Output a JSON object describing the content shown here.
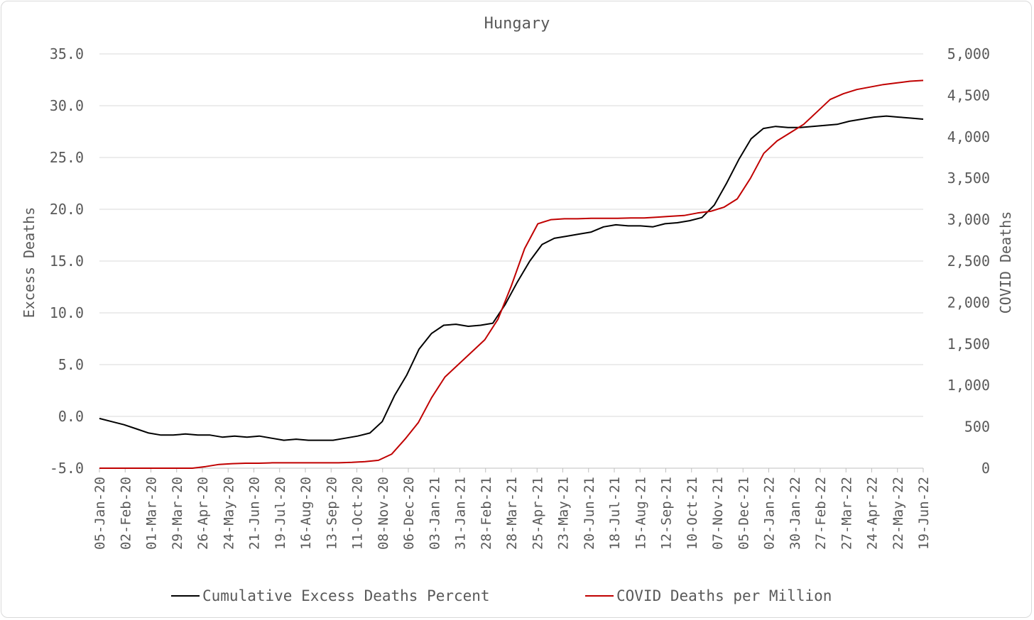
{
  "chart_data": {
    "type": "line",
    "title": "Hungary",
    "ylabel": "Excess Deaths",
    "y2label": "COVID Deaths",
    "ylim": [
      -5.0,
      35.0
    ],
    "y2lim": [
      0,
      5000
    ],
    "yticks": [
      "35.0",
      "30.0",
      "25.0",
      "20.0",
      "15.0",
      "10.0",
      "5.0",
      "0.0",
      "-5.0"
    ],
    "y2ticks": [
      "5,000",
      "4,500",
      "4,000",
      "3,500",
      "3,000",
      "2,500",
      "2,000",
      "1,500",
      "1,000",
      "500",
      "0"
    ],
    "xlabels": [
      "05-Jan-20",
      "02-Feb-20",
      "01-Mar-20",
      "29-Mar-20",
      "26-Apr-20",
      "24-May-20",
      "21-Jun-20",
      "19-Jul-20",
      "16-Aug-20",
      "13-Sep-20",
      "11-Oct-20",
      "08-Nov-20",
      "06-Dec-20",
      "03-Jan-21",
      "31-Jan-21",
      "28-Feb-21",
      "28-Mar-21",
      "25-Apr-21",
      "23-May-21",
      "20-Jun-21",
      "18-Jul-21",
      "15-Aug-21",
      "12-Sep-21",
      "10-Oct-21",
      "07-Nov-21",
      "05-Dec-21",
      "02-Jan-22",
      "30-Jan-22",
      "27-Feb-22",
      "27-Mar-22",
      "24-Apr-22",
      "22-May-22",
      "19-Jun-22"
    ],
    "grid": true,
    "legend_position": "bottom",
    "series": [
      {
        "name": "Cumulative Excess Deaths Percent",
        "axis": "left",
        "color": "#000000",
        "values": [
          -0.2,
          -0.5,
          -0.8,
          -1.2,
          -1.6,
          -1.8,
          -1.8,
          -1.7,
          -1.8,
          -1.8,
          -2.0,
          -1.9,
          -2.0,
          -1.9,
          -2.1,
          -2.3,
          -2.2,
          -2.3,
          -2.3,
          -2.3,
          -2.1,
          -1.9,
          -1.6,
          -0.5,
          2.0,
          4.0,
          6.5,
          8.0,
          8.8,
          8.9,
          8.7,
          8.8,
          9.0,
          10.8,
          13.0,
          15.0,
          16.6,
          17.2,
          17.4,
          17.6,
          17.8,
          18.3,
          18.5,
          18.4,
          18.4,
          18.3,
          18.6,
          18.7,
          18.9,
          19.2,
          20.4,
          22.5,
          24.8,
          26.8,
          27.8,
          28.0,
          27.9,
          27.9,
          28.0,
          28.1,
          28.2,
          28.5,
          28.7,
          28.9,
          29.0,
          28.9,
          28.8,
          28.7
        ]
      },
      {
        "name": "COVID Deaths per Million",
        "axis": "right",
        "color": "#c00000",
        "values": [
          0,
          0,
          0,
          0,
          0,
          0,
          0,
          0,
          20,
          45,
          55,
          60,
          60,
          65,
          65,
          65,
          65,
          65,
          65,
          70,
          80,
          95,
          170,
          350,
          550,
          850,
          1100,
          1250,
          1400,
          1550,
          1800,
          2200,
          2650,
          2950,
          3000,
          3010,
          3010,
          3015,
          3015,
          3015,
          3020,
          3020,
          3030,
          3040,
          3050,
          3080,
          3100,
          3150,
          3250,
          3500,
          3800,
          3950,
          4050,
          4150,
          4300,
          4450,
          4520,
          4570,
          4600,
          4630,
          4650,
          4670,
          4680
        ]
      }
    ]
  }
}
